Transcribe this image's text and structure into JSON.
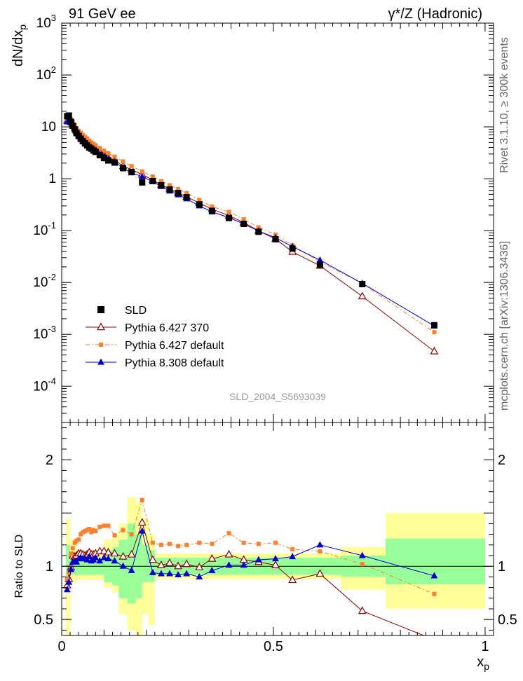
{
  "header": {
    "left": "91 GeV ee",
    "right": "γ*/Z (Hadronic)"
  },
  "side_text": {
    "rivet": "Rivet 3.1.10, ≥ 300k events",
    "mcplots": "mcplots.cern.ch [arXiv:1306.3436]"
  },
  "watermark": "SLD_2004_S5693039",
  "chart_data": [
    {
      "type": "scatter",
      "ylabel": "dN/dx_p",
      "yscale": "log",
      "ylim": [
        2e-05,
        1000
      ],
      "xlim": [
        0,
        1.02
      ],
      "ytick_labels": [
        "10^-4",
        "10^-3",
        "10^-2",
        "10^-1",
        "1",
        "10",
        "10^2",
        "10^3"
      ],
      "legend": {
        "placement": "bottom-left",
        "entries": [
          "SLD",
          "Pythia 6.427 370",
          "Pythia 6.427 default",
          "Pythia 8.308 default"
        ]
      },
      "series": [
        {
          "name": "SLD",
          "color": "#000000",
          "marker": "square",
          "x": [
            0.013,
            0.017,
            0.022,
            0.026,
            0.031,
            0.035,
            0.04,
            0.045,
            0.05,
            0.055,
            0.06,
            0.065,
            0.07,
            0.075,
            0.08,
            0.09,
            0.1,
            0.11,
            0.125,
            0.145,
            0.165,
            0.19,
            0.215,
            0.235,
            0.255,
            0.275,
            0.295,
            0.325,
            0.355,
            0.395,
            0.43,
            0.465,
            0.505,
            0.545,
            0.61,
            0.71,
            0.88
          ],
          "y": [
            16.0,
            16.5,
            12.5,
            10.5,
            8.9,
            7.6,
            6.7,
            5.9,
            5.3,
            4.8,
            4.4,
            4.0,
            3.8,
            3.5,
            3.3,
            2.85,
            2.5,
            2.25,
            2.05,
            1.6,
            1.35,
            0.85,
            0.9,
            0.75,
            0.62,
            0.53,
            0.44,
            0.32,
            0.24,
            0.175,
            0.135,
            0.095,
            0.068,
            0.045,
            0.022,
            0.0093,
            0.0015
          ]
        },
        {
          "name": "Pythia 6.427 370",
          "color": "#8b0000",
          "marker": "open-triangle",
          "x": [
            0.013,
            0.017,
            0.022,
            0.026,
            0.031,
            0.035,
            0.04,
            0.045,
            0.05,
            0.055,
            0.06,
            0.065,
            0.07,
            0.075,
            0.08,
            0.09,
            0.1,
            0.11,
            0.125,
            0.145,
            0.165,
            0.19,
            0.215,
            0.235,
            0.255,
            0.275,
            0.295,
            0.325,
            0.355,
            0.395,
            0.43,
            0.465,
            0.505,
            0.545,
            0.61,
            0.71,
            0.88
          ],
          "y": [
            13.2,
            14.5,
            12.4,
            11.6,
            9.7,
            8.4,
            7.5,
            6.6,
            5.9,
            5.3,
            4.9,
            4.5,
            4.2,
            3.9,
            3.7,
            3.25,
            2.85,
            2.55,
            2.3,
            1.75,
            1.5,
            1.2,
            0.95,
            0.76,
            0.64,
            0.53,
            0.45,
            0.34,
            0.26,
            0.195,
            0.143,
            0.099,
            0.069,
            0.039,
            0.021,
            0.0054,
            0.00047
          ]
        },
        {
          "name": "Pythia 6.427 default",
          "color": "#ff7f2a",
          "marker": "square",
          "x": [
            0.013,
            0.017,
            0.022,
            0.026,
            0.031,
            0.035,
            0.04,
            0.045,
            0.05,
            0.055,
            0.06,
            0.065,
            0.07,
            0.075,
            0.08,
            0.09,
            0.1,
            0.11,
            0.125,
            0.145,
            0.165,
            0.19,
            0.215,
            0.235,
            0.255,
            0.275,
            0.295,
            0.325,
            0.355,
            0.395,
            0.43,
            0.465,
            0.505,
            0.545,
            0.61,
            0.71,
            0.88
          ],
          "y": [
            14.0,
            15.5,
            14.0,
            12.3,
            10.9,
            9.4,
            8.4,
            7.7,
            7.0,
            6.4,
            5.9,
            5.4,
            5.0,
            4.7,
            4.4,
            3.9,
            3.45,
            3.1,
            2.65,
            2.15,
            1.75,
            1.38,
            1.1,
            0.9,
            0.75,
            0.63,
            0.53,
            0.39,
            0.29,
            0.23,
            0.165,
            0.115,
            0.083,
            0.052,
            0.025,
            0.0095,
            0.0011
          ]
        },
        {
          "name": "Pythia 8.308 default",
          "color": "#0000cc",
          "marker": "triangle",
          "x": [
            0.013,
            0.017,
            0.022,
            0.026,
            0.031,
            0.035,
            0.04,
            0.045,
            0.05,
            0.055,
            0.06,
            0.065,
            0.07,
            0.075,
            0.08,
            0.09,
            0.1,
            0.11,
            0.125,
            0.145,
            0.165,
            0.19,
            0.215,
            0.235,
            0.255,
            0.275,
            0.295,
            0.325,
            0.355,
            0.395,
            0.43,
            0.465,
            0.505,
            0.545,
            0.61,
            0.71,
            0.88
          ],
          "y": [
            12.5,
            12.8,
            12.0,
            10.8,
            9.3,
            7.9,
            7.0,
            6.3,
            5.7,
            5.2,
            4.7,
            4.3,
            4.0,
            3.7,
            3.5,
            3.0,
            2.7,
            2.4,
            2.15,
            1.6,
            1.3,
            1.1,
            0.88,
            0.71,
            0.58,
            0.49,
            0.41,
            0.3,
            0.23,
            0.178,
            0.135,
            0.098,
            0.073,
            0.049,
            0.027,
            0.0096,
            0.00145
          ]
        }
      ]
    },
    {
      "type": "line",
      "ylabel": "Ratio to SLD",
      "xlabel": "x_p",
      "ylim": [
        0.35,
        2.35
      ],
      "xlim": [
        0,
        1.02
      ],
      "ytick_labels": [
        "0.5",
        "1",
        "2"
      ],
      "xtick_labels": [
        "0",
        "0.5",
        "1"
      ],
      "reference_line": 1,
      "uncertainty_bands": [
        {
          "x0": 0.01,
          "x1": 0.02,
          "green": [
            0.8,
            1.2
          ],
          "yellow": [
            0.35,
            1.45
          ]
        },
        {
          "x0": 0.02,
          "x1": 0.035,
          "green": [
            0.92,
            1.08
          ],
          "yellow": [
            0.85,
            1.25
          ]
        },
        {
          "x0": 0.035,
          "x1": 0.1,
          "green": [
            0.92,
            1.08
          ],
          "yellow": [
            0.87,
            1.15
          ]
        },
        {
          "x0": 0.1,
          "x1": 0.12,
          "green": [
            0.85,
            1.15
          ],
          "yellow": [
            0.8,
            1.25
          ]
        },
        {
          "x0": 0.12,
          "x1": 0.135,
          "green": [
            0.82,
            1.18
          ],
          "yellow": [
            0.75,
            1.3
          ]
        },
        {
          "x0": 0.135,
          "x1": 0.155,
          "green": [
            0.7,
            1.25
          ],
          "yellow": [
            0.55,
            1.4
          ]
        },
        {
          "x0": 0.155,
          "x1": 0.175,
          "green": [
            0.65,
            1.4
          ],
          "yellow": [
            0.4,
            1.65
          ]
        },
        {
          "x0": 0.175,
          "x1": 0.19,
          "green": [
            0.7,
            1.3
          ],
          "yellow": [
            0.35,
            1.6
          ]
        },
        {
          "x0": 0.19,
          "x1": 0.205,
          "green": [
            0.85,
            1.2
          ],
          "yellow": [
            0.55,
            1.45
          ]
        },
        {
          "x0": 0.205,
          "x1": 0.22,
          "green": [
            0.85,
            1.15
          ],
          "yellow": [
            0.45,
            1.3
          ]
        },
        {
          "x0": 0.22,
          "x1": 0.33,
          "green": [
            0.92,
            1.08
          ],
          "yellow": [
            0.88,
            1.12
          ]
        },
        {
          "x0": 0.33,
          "x1": 0.66,
          "green": [
            0.92,
            1.08
          ],
          "yellow": [
            0.88,
            1.12
          ]
        },
        {
          "x0": 0.66,
          "x1": 0.765,
          "green": [
            0.9,
            1.1
          ],
          "yellow": [
            0.78,
            1.18
          ]
        },
        {
          "x0": 0.765,
          "x1": 1.0,
          "green": [
            0.83,
            1.26
          ],
          "yellow": [
            0.6,
            1.5
          ]
        }
      ],
      "series": [
        {
          "name": "Pythia 6.427 370",
          "color": "#8b0000",
          "marker": "open-triangle",
          "x": [
            0.013,
            0.017,
            0.022,
            0.026,
            0.031,
            0.035,
            0.04,
            0.045,
            0.05,
            0.055,
            0.06,
            0.065,
            0.07,
            0.075,
            0.08,
            0.09,
            0.1,
            0.11,
            0.125,
            0.145,
            0.165,
            0.19,
            0.215,
            0.235,
            0.255,
            0.275,
            0.295,
            0.325,
            0.355,
            0.395,
            0.43,
            0.465,
            0.505,
            0.545,
            0.61,
            0.71,
            0.88
          ],
          "y": [
            0.82,
            0.88,
            0.99,
            1.1,
            1.09,
            1.1,
            1.12,
            1.12,
            1.11,
            1.1,
            1.11,
            1.13,
            1.11,
            1.11,
            1.12,
            1.14,
            1.14,
            1.13,
            1.12,
            1.09,
            1.11,
            1.41,
            1.06,
            1.01,
            1.03,
            1.0,
            1.02,
            0.99,
            1.07,
            1.11,
            1.06,
            1.04,
            1.01,
            0.87,
            0.93,
            0.58,
            0.31
          ]
        },
        {
          "name": "Pythia 6.427 default",
          "color": "#ff7f2a",
          "marker": "square",
          "x": [
            0.013,
            0.017,
            0.022,
            0.026,
            0.031,
            0.035,
            0.04,
            0.045,
            0.05,
            0.055,
            0.06,
            0.065,
            0.07,
            0.075,
            0.08,
            0.09,
            0.1,
            0.11,
            0.125,
            0.145,
            0.165,
            0.19,
            0.215,
            0.235,
            0.255,
            0.275,
            0.295,
            0.325,
            0.355,
            0.395,
            0.43,
            0.465,
            0.505,
            0.545,
            0.61,
            0.71,
            0.88
          ],
          "y": [
            0.88,
            0.94,
            1.12,
            1.17,
            1.22,
            1.24,
            1.25,
            1.3,
            1.32,
            1.33,
            1.34,
            1.35,
            1.32,
            1.34,
            1.33,
            1.37,
            1.38,
            1.38,
            1.29,
            1.34,
            1.3,
            1.62,
            1.22,
            1.2,
            1.21,
            1.19,
            1.2,
            1.22,
            1.21,
            1.31,
            1.22,
            1.21,
            1.22,
            1.16,
            1.14,
            1.02,
            0.74
          ]
        },
        {
          "name": "Pythia 8.308 default",
          "color": "#0000cc",
          "marker": "triangle",
          "x": [
            0.013,
            0.017,
            0.022,
            0.026,
            0.031,
            0.035,
            0.04,
            0.045,
            0.05,
            0.055,
            0.06,
            0.065,
            0.07,
            0.075,
            0.08,
            0.09,
            0.1,
            0.11,
            0.125,
            0.145,
            0.165,
            0.19,
            0.215,
            0.235,
            0.255,
            0.275,
            0.295,
            0.325,
            0.355,
            0.395,
            0.43,
            0.465,
            0.505,
            0.545,
            0.61,
            0.71,
            0.88
          ],
          "y": [
            0.78,
            0.85,
            0.97,
            1.04,
            1.04,
            1.04,
            1.07,
            1.08,
            1.07,
            1.07,
            1.06,
            1.09,
            1.05,
            1.06,
            1.08,
            1.05,
            1.08,
            1.07,
            1.05,
            1.0,
            0.96,
            1.33,
            0.94,
            0.93,
            0.93,
            0.92,
            0.93,
            0.9,
            0.96,
            1.01,
            1.01,
            1.06,
            1.07,
            1.09,
            1.2,
            1.1,
            0.91
          ]
        }
      ]
    }
  ]
}
